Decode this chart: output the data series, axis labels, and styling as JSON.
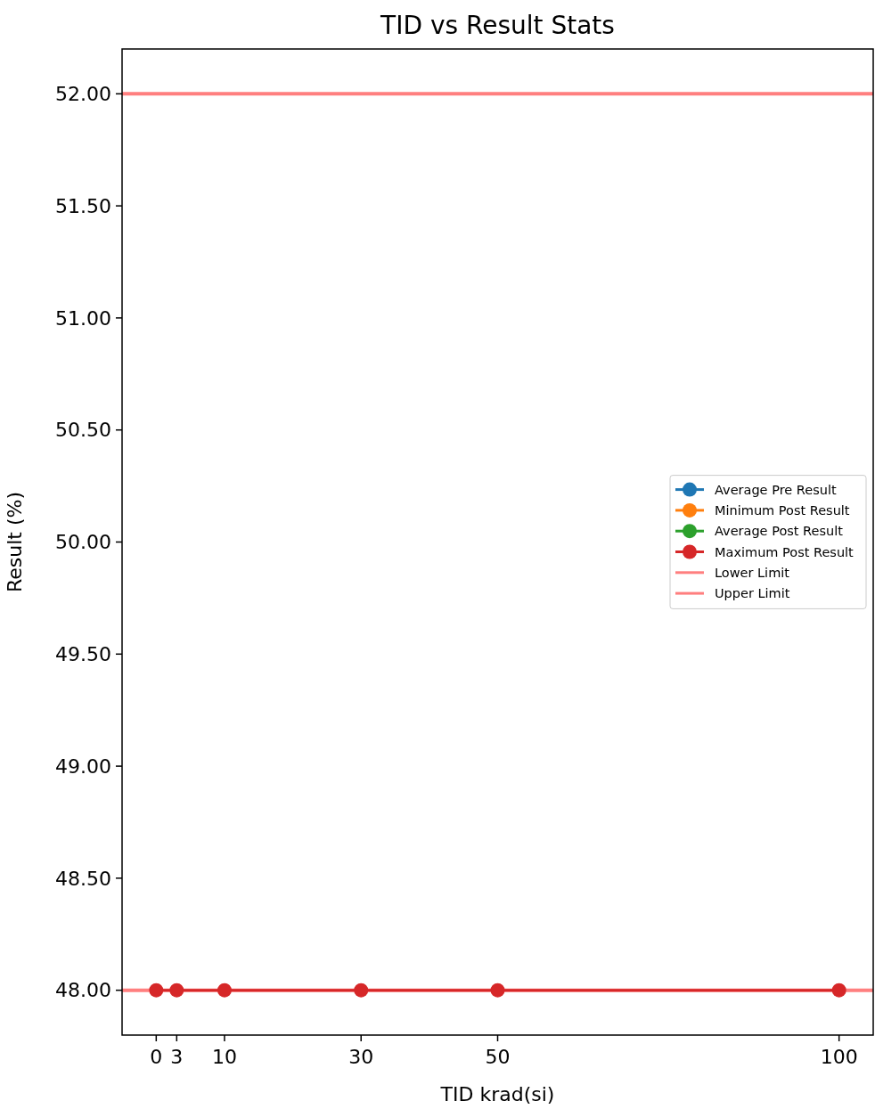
{
  "chart_data": {
    "type": "line",
    "title": "TID vs Result Stats",
    "xlabel": "TID krad(si)",
    "ylabel": "Result (%)",
    "x": [
      0,
      3,
      10,
      30,
      50,
      100
    ],
    "series": [
      {
        "name": "Average Pre Result",
        "color": "#1f77b4",
        "values": [
          null,
          null,
          null,
          null,
          null,
          null
        ]
      },
      {
        "name": "Minimum Post Result",
        "color": "#ff7f0e",
        "values": [
          null,
          null,
          null,
          null,
          null,
          null
        ]
      },
      {
        "name": "Average Post Result",
        "color": "#2ca02c",
        "values": [
          null,
          null,
          null,
          null,
          null,
          null
        ]
      },
      {
        "name": "Maximum Post Result",
        "color": "#d62728",
        "values": [
          48,
          48,
          48,
          48,
          48,
          48
        ]
      }
    ],
    "ref_lines": [
      {
        "axis": "y",
        "value": 48,
        "label": "Lower Limit",
        "color": "#ff7f7f"
      },
      {
        "axis": "y",
        "value": 52,
        "label": "Upper Limit",
        "color": "#ff7f7f"
      }
    ],
    "xlim": [
      -5,
      105
    ],
    "xticks": [
      0,
      3,
      10,
      30,
      50,
      100
    ],
    "ylim": [
      47.8,
      52.2
    ],
    "yticks": [
      {
        "value": 48,
        "label": "48.00"
      },
      {
        "value": 48.5,
        "label": "48.50"
      },
      {
        "value": 49,
        "label": "49.00"
      },
      {
        "value": 49.5,
        "label": "49.50"
      },
      {
        "value": 50,
        "label": "50.00"
      },
      {
        "value": 50.5,
        "label": "50.50"
      },
      {
        "value": 51,
        "label": "51.00"
      },
      {
        "value": 51.5,
        "label": "51.50"
      },
      {
        "value": 52,
        "label": "52.00"
      }
    ],
    "marker": "circle",
    "line_style": "solid",
    "legend": "right",
    "grid": false
  }
}
